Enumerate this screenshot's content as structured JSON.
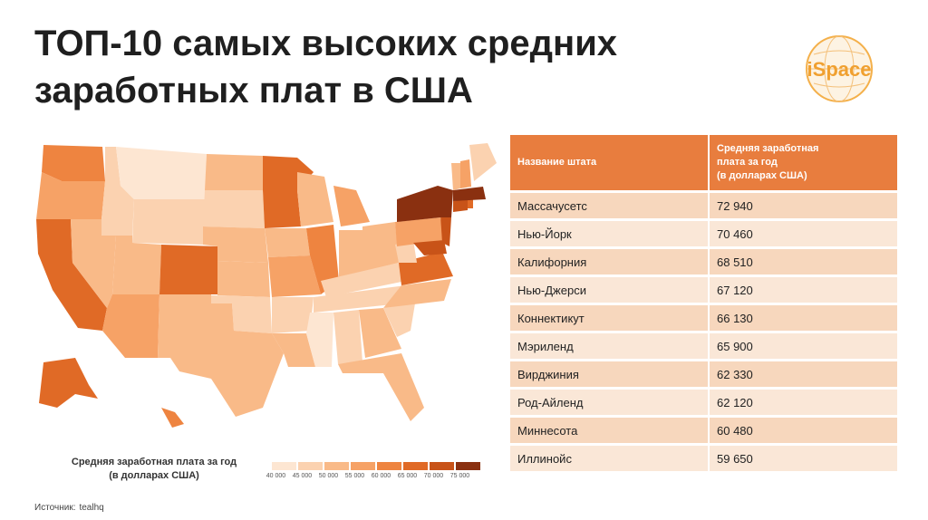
{
  "title": {
    "line1": "ТОП-10 самых высоких средних",
    "line2": "заработных плат в США"
  },
  "logo": {
    "text": "iSpace",
    "icon": "globe-logo-icon",
    "color": "#f0a030"
  },
  "map": {
    "icon": "us-states-map",
    "legend": {
      "title_line1": "Средняя заработная плата за год",
      "title_line2": "(в долларах США)",
      "ticks": [
        "40 000",
        "45 000",
        "50 000",
        "55 000",
        "60 000",
        "65 000",
        "70 000",
        "75 000"
      ],
      "colors": [
        "#fde6d2",
        "#fbd2b0",
        "#f9ba88",
        "#f6a266",
        "#ee8440",
        "#e06a26",
        "#c85318",
        "#8a3010"
      ]
    }
  },
  "table": {
    "header": {
      "col1": "Название штата",
      "col2_line1": "Средняя заработная",
      "col2_line2": "плата за год",
      "col2_line3": "(в долларах США)"
    },
    "rows": [
      {
        "state": "Массачусетс",
        "salary": "72 940"
      },
      {
        "state": "Нью-Йорк",
        "salary": "70 460"
      },
      {
        "state": "Калифорния",
        "salary": "68 510"
      },
      {
        "state": "Нью-Джерси",
        "salary": "67 120"
      },
      {
        "state": "Коннектикут",
        "salary": "66 130"
      },
      {
        "state": "Мэриленд",
        "salary": "65 900"
      },
      {
        "state": "Вирджиния",
        "salary": "62 330"
      },
      {
        "state": "Род-Айленд",
        "salary": "62 120"
      },
      {
        "state": "Миннесота",
        "salary": "60 480"
      },
      {
        "state": "Иллинойс",
        "salary": "59 650"
      }
    ]
  },
  "source": {
    "label": "Источник:",
    "value": "tealhq"
  },
  "colors": {
    "accent": "#e87d3e",
    "row_odd": "#f7d7bd",
    "row_even": "#fae7d7"
  }
}
